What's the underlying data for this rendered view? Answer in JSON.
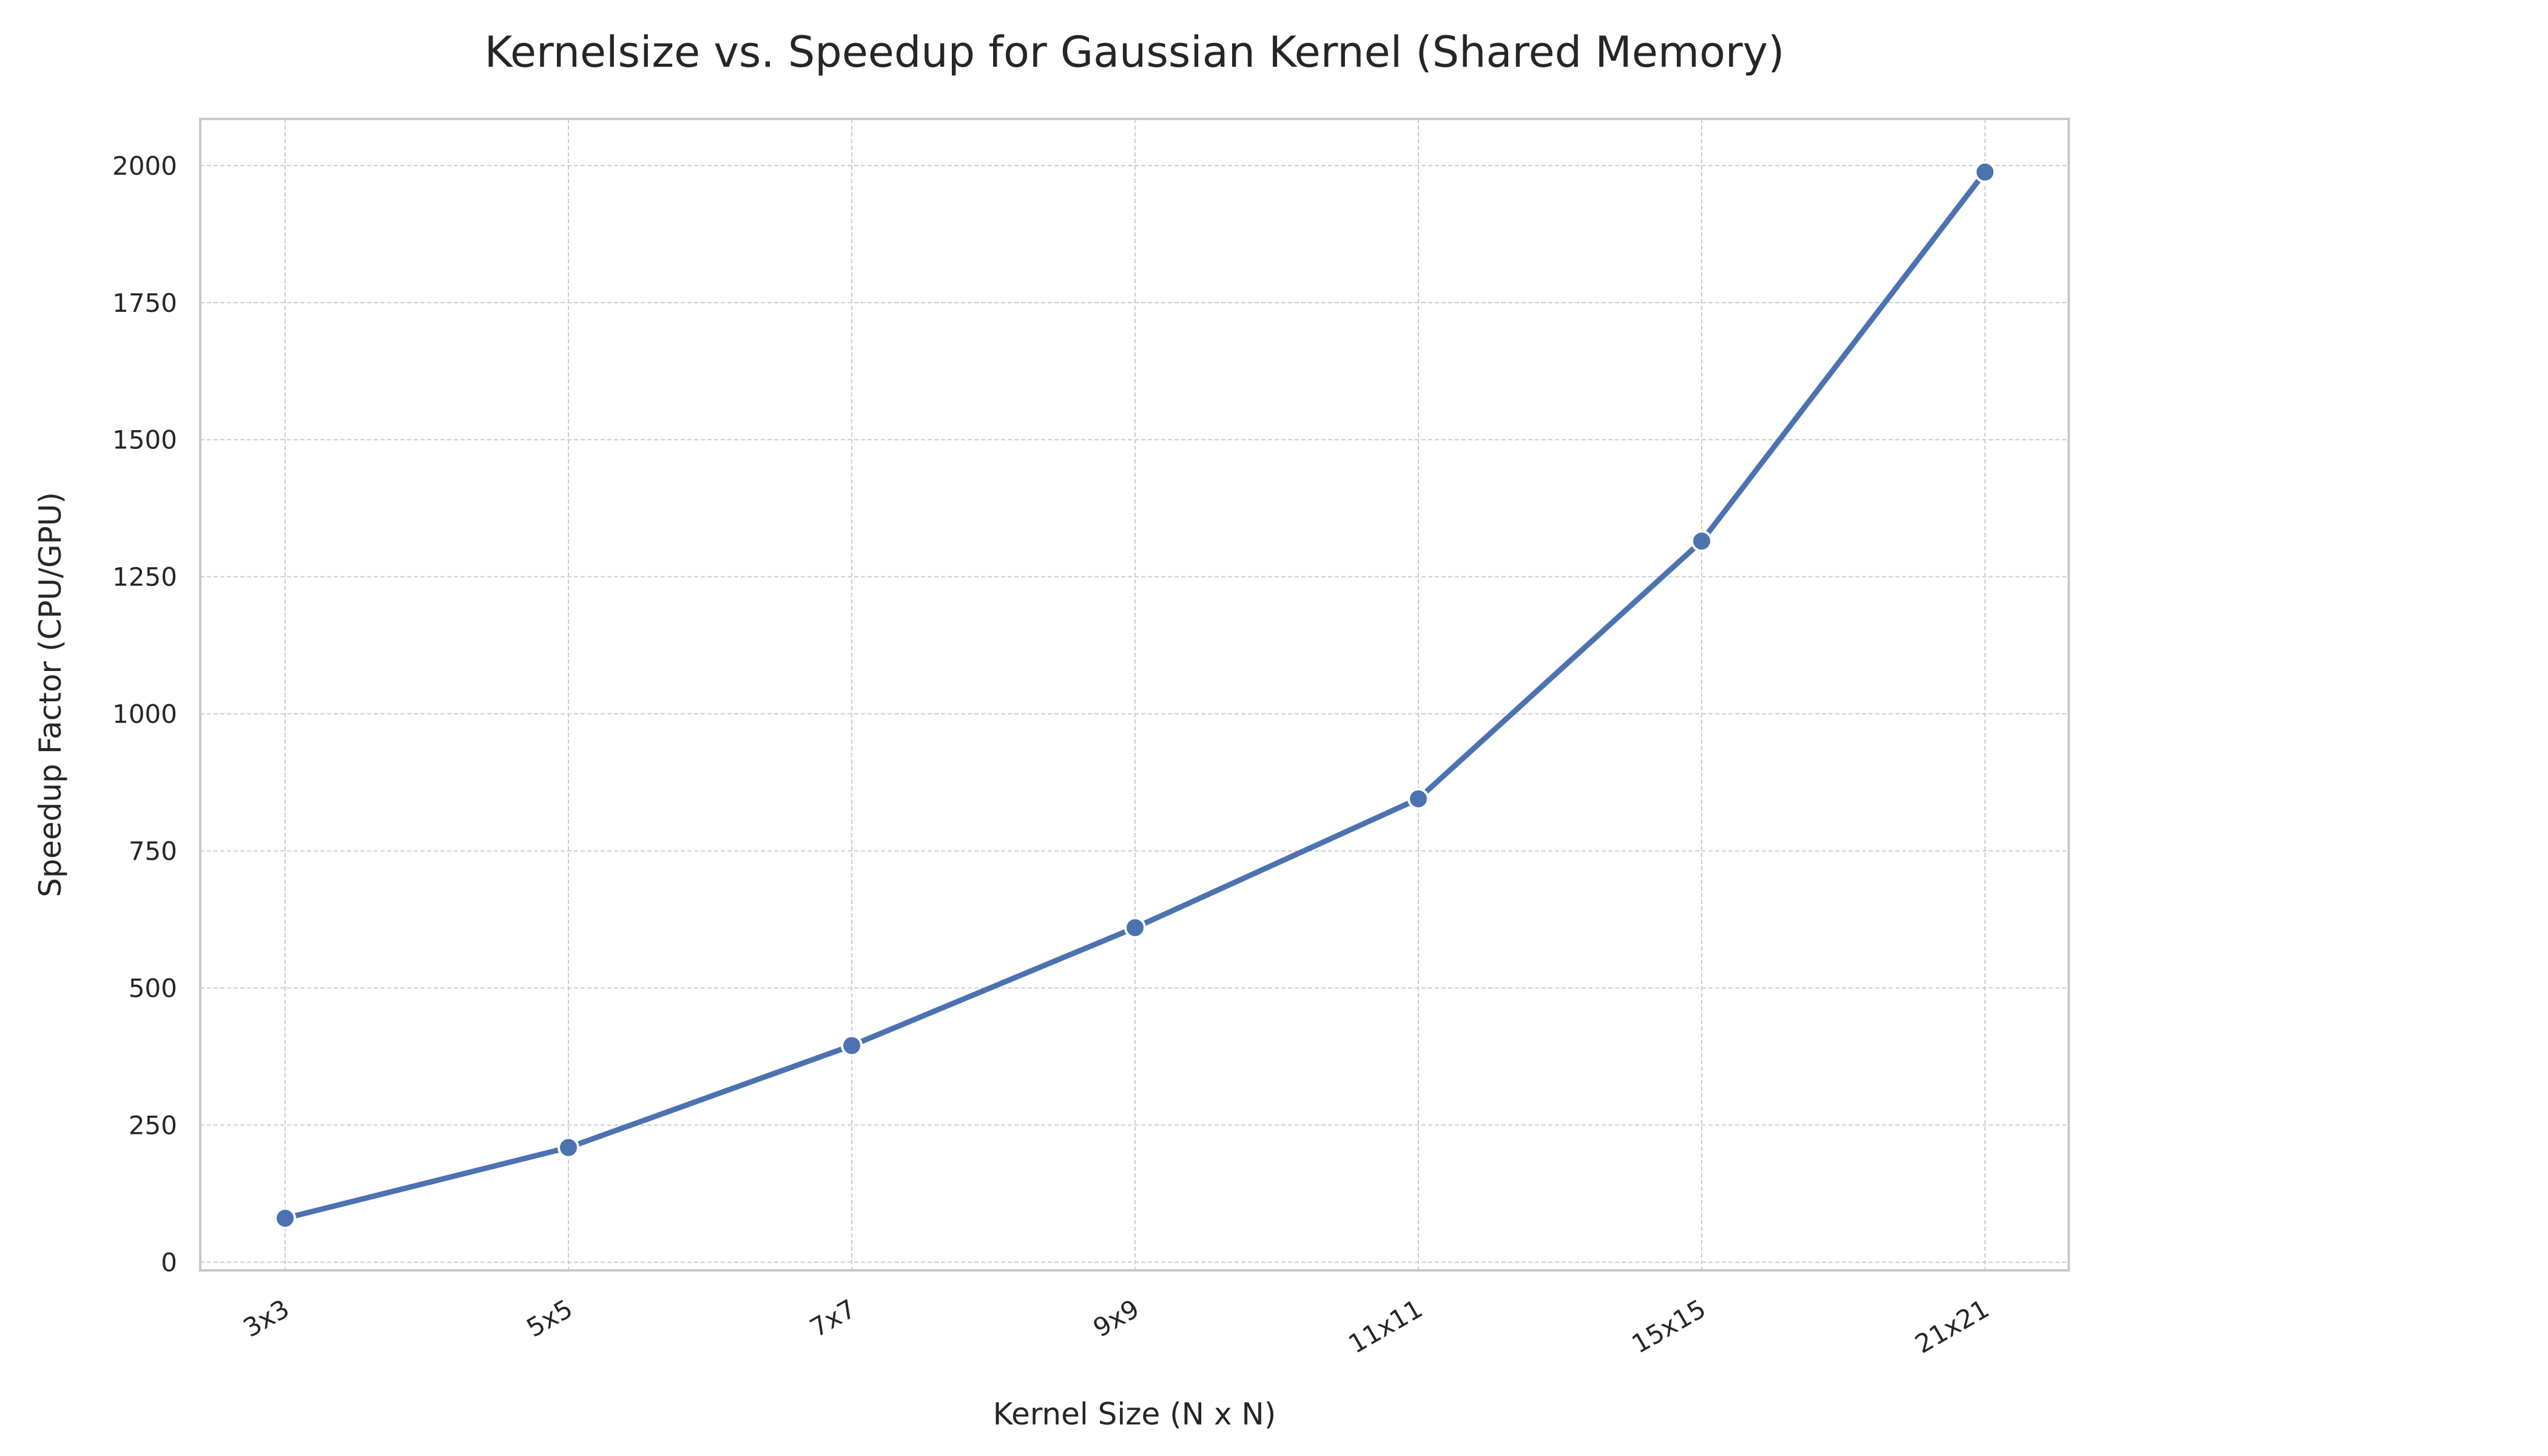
{
  "chart_data": {
    "type": "line",
    "title": "Kernelsize vs. Speedup for Gaussian Kernel (Shared Memory)",
    "xlabel": "Kernel Size (N x N)",
    "ylabel": "Speedup Factor (CPU/GPU)",
    "categories": [
      "3x3",
      "5x5",
      "7x7",
      "9x9",
      "11x11",
      "15x15",
      "21x21"
    ],
    "series": [
      {
        "values": [
          80,
          209,
          395,
          610,
          845,
          1315,
          1988
        ]
      }
    ],
    "ylim": [
      -15,
      2085
    ],
    "yticks": [
      0,
      250,
      500,
      750,
      1000,
      1250,
      1500,
      1750,
      2000
    ],
    "grid": true,
    "marker": "circle",
    "colors": {
      "series": "#4c72b0",
      "grid": "#cccccc",
      "frame": "#c8c8c8",
      "text": "#262626"
    }
  }
}
